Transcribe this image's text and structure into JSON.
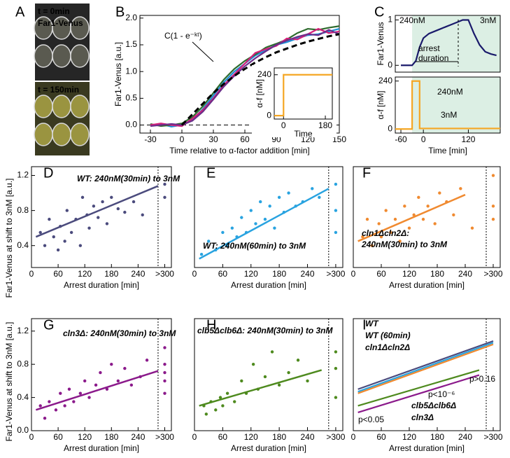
{
  "chart_data": [
    {
      "type": "image",
      "label": "A",
      "frames": [
        {
          "time": "t = 0min",
          "caption": "Far1-Venus"
        },
        {
          "time": "t = 150min"
        }
      ]
    },
    {
      "type": "line",
      "label": "B",
      "xlabel": "Time relative to α-factor addition [min]",
      "ylabel": "Far1-Venus [a.u.]",
      "xlim": [
        -40,
        150
      ],
      "ylim": [
        -0.15,
        2.05
      ],
      "xticks": [
        -30,
        0,
        30,
        60,
        90,
        120,
        150
      ],
      "yticks": [
        {
          "value": 0,
          "label": "0.0"
        },
        {
          "value": 0.5,
          "label": "0.5"
        },
        {
          "value": 1,
          "label": "1.0"
        },
        {
          "value": 1.5,
          "label": "1.5"
        },
        {
          "value": 2,
          "label": "2.0"
        }
      ],
      "hline": 0,
      "annotation": "C(1 - e⁻ᵏᵗ)",
      "x": [
        -30,
        -20,
        -10,
        0,
        10,
        20,
        30,
        40,
        50,
        60,
        70,
        80,
        90,
        100,
        110,
        120,
        130,
        140,
        150
      ],
      "series": [
        {
          "color": "#1f8fd6",
          "values": [
            0,
            0.02,
            -0.03,
            0,
            0.1,
            0.3,
            0.55,
            0.8,
            1.0,
            1.15,
            1.3,
            1.4,
            1.5,
            1.55,
            1.62,
            1.68,
            1.7,
            1.75,
            1.8
          ]
        },
        {
          "color": "#2e6b2e",
          "values": [
            0.02,
            -0.02,
            0,
            0.03,
            0.15,
            0.35,
            0.6,
            0.85,
            1.05,
            1.2,
            1.32,
            1.45,
            1.52,
            1.6,
            1.72,
            1.8,
            1.78,
            1.82,
            1.85
          ]
        },
        {
          "color": "#d6207a",
          "values": [
            0,
            0.03,
            0,
            -0.02,
            0.12,
            0.28,
            0.5,
            0.75,
            0.95,
            1.15,
            1.35,
            1.42,
            1.48,
            1.62,
            1.6,
            1.7,
            1.8,
            1.72,
            1.75
          ]
        },
        {
          "color": "#6b2e8a",
          "values": [
            -0.02,
            0,
            0.02,
            0,
            0.08,
            0.25,
            0.48,
            0.72,
            0.92,
            1.1,
            1.25,
            1.38,
            1.5,
            1.58,
            1.65,
            1.7,
            1.68,
            1.78,
            1.7
          ]
        },
        {
          "color": "#000000",
          "dash": true,
          "values": [
            null,
            null,
            null,
            0,
            0.2,
            0.4,
            0.6,
            0.77,
            0.92,
            1.05,
            1.17,
            1.27,
            1.36,
            1.43,
            1.5,
            1.56,
            1.61,
            1.66,
            1.7
          ]
        }
      ],
      "inset": {
        "xlabel": "Time",
        "ylabel": "α-f [nM]",
        "xlim": [
          -40,
          210
        ],
        "ylim": [
          -20,
          280
        ],
        "xticks": [
          0,
          180
        ],
        "yticks": [
          0,
          240
        ],
        "series": [
          {
            "color": "#f5a623",
            "x": [
              -40,
              0,
              0,
              210
            ],
            "values": [
              0,
              0,
              240,
              240
            ]
          }
        ]
      }
    },
    {
      "type": "line",
      "label": "C",
      "ylabel": "Far1-Venus",
      "xlim": [
        -75,
        205
      ],
      "ylim": [
        -0.15,
        1.1
      ],
      "yticks": [
        0,
        1
      ],
      "highlight": [
        -30,
        205
      ],
      "annotations": [
        "240nM",
        "3nM",
        "arrest",
        "duration"
      ],
      "x": [
        -60,
        -45,
        -30,
        -20,
        -10,
        0,
        15,
        30,
        45,
        60,
        75,
        90,
        105,
        120,
        135,
        150,
        165,
        180,
        195
      ],
      "series": [
        {
          "color": "#1a1a6b",
          "values": [
            0,
            0,
            0,
            0.1,
            0.4,
            0.6,
            0.7,
            0.75,
            0.8,
            0.85,
            0.9,
            0.95,
            1.0,
            1.0,
            0.7,
            0.45,
            0.3,
            0.25,
            0.22
          ]
        }
      ]
    },
    {
      "type": "line",
      "xlabel": "Time [min]",
      "ylabel": "α-f [nM]",
      "xlim": [
        -75,
        205
      ],
      "ylim": [
        -20,
        260
      ],
      "xticks": [
        -60,
        0,
        120
      ],
      "yticks": [
        0,
        240
      ],
      "highlight": [
        -30,
        205
      ],
      "annotations": [
        "240nM",
        "3nM"
      ],
      "x": [
        -75,
        -30,
        -30,
        -10,
        -10,
        205
      ],
      "series": [
        {
          "color": "#f5a623",
          "values": [
            0,
            0,
            240,
            240,
            3,
            3
          ]
        }
      ]
    },
    {
      "type": "scatter",
      "label": "D",
      "title": "WT: 240nM(30min) to 3nM",
      "color": "#4b4b7d",
      "xlabel": "Arrest duration [min]",
      "ylabel": "Far1-Venus at shift to 3nM [a.u.]",
      "xlim": [
        0,
        315
      ],
      "ylim": [
        0.15,
        1.3
      ],
      "xticks": [
        0,
        60,
        120,
        180,
        240,
        {
          "value": 300,
          "label": ">300"
        }
      ],
      "yticks": [
        0.4,
        0.8,
        1.2
      ],
      "vline": 285,
      "x": [
        20,
        30,
        40,
        50,
        60,
        65,
        75,
        80,
        90,
        100,
        110,
        115,
        125,
        130,
        140,
        150,
        160,
        170,
        180,
        195,
        210,
        230,
        250,
        300,
        300
      ],
      "values": [
        0.55,
        0.4,
        0.7,
        0.5,
        0.35,
        0.62,
        0.45,
        0.8,
        0.55,
        0.7,
        0.4,
        0.95,
        0.75,
        0.6,
        0.85,
        0.72,
        0.9,
        0.65,
        0.95,
        0.82,
        0.78,
        0.9,
        0.75,
        1.1,
        0.95
      ],
      "fit": {
        "x": [
          10,
          285
        ],
        "y": [
          0.5,
          1.08
        ]
      }
    },
    {
      "type": "scatter",
      "label": "E",
      "title": "WT: 240nM(60min) to 3nM",
      "color": "#29a3e0",
      "xlabel": "Arrest duration [min]",
      "xlim": [
        0,
        315
      ],
      "ylim": [
        0.15,
        1.3
      ],
      "xticks": [
        0,
        60,
        120,
        180,
        240,
        {
          "value": 300,
          "label": ">300"
        }
      ],
      "vline": 285,
      "x": [
        15,
        30,
        45,
        60,
        70,
        80,
        90,
        100,
        110,
        120,
        130,
        140,
        150,
        160,
        170,
        180,
        190,
        200,
        215,
        230,
        250,
        265,
        300,
        300,
        300
      ],
      "values": [
        0.3,
        0.45,
        0.35,
        0.55,
        0.4,
        0.6,
        0.5,
        0.72,
        0.55,
        0.8,
        0.65,
        0.9,
        0.7,
        0.85,
        0.6,
        0.95,
        0.78,
        1.0,
        0.85,
        0.9,
        1.05,
        0.95,
        0.8,
        1.1,
        0.55
      ],
      "fit": {
        "x": [
          10,
          285
        ],
        "y": [
          0.25,
          1.05
        ]
      }
    },
    {
      "type": "scatter",
      "label": "F",
      "title": [
        "cln1Δcln2Δ:",
        "240nM(30min) to 3nM"
      ],
      "color": "#f08a30",
      "xlabel": "Arrest duration [min]",
      "xlim": [
        0,
        315
      ],
      "ylim": [
        0.15,
        1.3
      ],
      "xticks": [
        0,
        60,
        120,
        180,
        240,
        {
          "value": 300,
          "label": ">300"
        }
      ],
      "vline": 285,
      "x": [
        20,
        30,
        40,
        55,
        60,
        70,
        80,
        90,
        100,
        110,
        120,
        130,
        140,
        150,
        160,
        175,
        185,
        200,
        215,
        230,
        255,
        300,
        300,
        300
      ],
      "values": [
        0.5,
        0.7,
        0.4,
        0.65,
        0.5,
        0.8,
        0.55,
        0.7,
        0.45,
        0.85,
        0.6,
        0.75,
        0.95,
        0.7,
        0.85,
        0.65,
        1.0,
        0.9,
        0.75,
        1.05,
        0.6,
        1.2,
        0.85,
        0.7
      ],
      "fit": {
        "x": [
          10,
          240
        ],
        "y": [
          0.45,
          0.98
        ]
      }
    },
    {
      "type": "scatter",
      "label": "G",
      "title": "cln3Δ: 240nM(30min) to 3nM",
      "color": "#8b1a8b",
      "xlabel": "Arrest duration [min]",
      "ylabel": "Far1-Venus at shift to 3nM [a.u.]",
      "xlim": [
        0,
        315
      ],
      "ylim": [
        0,
        1.35
      ],
      "xticks": [
        0,
        60,
        120,
        180,
        240,
        {
          "value": 300,
          "label": ">300"
        }
      ],
      "yticks": [
        {
          "value": 0,
          "label": "0.0"
        },
        0.4,
        0.8,
        1.2
      ],
      "vline": 285,
      "x": [
        20,
        30,
        40,
        55,
        65,
        75,
        85,
        95,
        110,
        120,
        130,
        145,
        155,
        170,
        180,
        195,
        210,
        225,
        245,
        260,
        300,
        300,
        300,
        300,
        300
      ],
      "values": [
        0.3,
        0.15,
        0.35,
        0.25,
        0.45,
        0.3,
        0.5,
        0.35,
        0.45,
        0.6,
        0.4,
        0.55,
        0.7,
        0.5,
        0.8,
        0.6,
        0.75,
        0.55,
        0.65,
        0.85,
        0.6,
        0.8,
        1.0,
        0.45,
        0.7
      ],
      "fit": {
        "x": [
          10,
          285
        ],
        "y": [
          0.25,
          0.72
        ]
      }
    },
    {
      "type": "scatter",
      "label": "H",
      "title": "clb5Δclb6Δ: 240nM(30min) to 3nM",
      "color": "#4e8a1e",
      "xlabel": "Arrest duration [min]",
      "xlim": [
        0,
        315
      ],
      "ylim": [
        0,
        1.35
      ],
      "xticks": [
        0,
        60,
        120,
        180,
        240,
        {
          "value": 300,
          "label": ">300"
        }
      ],
      "vline": 285,
      "x": [
        20,
        25,
        35,
        45,
        55,
        60,
        70,
        85,
        100,
        110,
        125,
        135,
        150,
        165,
        180,
        200,
        220,
        240,
        300,
        300,
        300
      ],
      "values": [
        0.3,
        0.2,
        0.35,
        0.25,
        0.4,
        0.3,
        0.45,
        0.35,
        0.6,
        0.45,
        0.8,
        0.5,
        0.65,
        0.95,
        0.55,
        0.7,
        0.85,
        0.6,
        0.75,
        0.95,
        0.4
      ],
      "fit": {
        "x": [
          10,
          270
        ],
        "y": [
          0.3,
          0.73
        ]
      }
    },
    {
      "type": "line",
      "label": "I",
      "xlabel": "Arrest duration [min]",
      "xlim": [
        0,
        315
      ],
      "ylim": [
        0,
        1.35
      ],
      "xticks": [
        0,
        60,
        120,
        180,
        240,
        {
          "value": 300,
          "label": ">300"
        }
      ],
      "vline": 285,
      "annotations": [
        "p>0.16",
        "p<10⁻⁶",
        "p<0.05"
      ],
      "series": [
        {
          "name": "WT",
          "color": "#4b4b7d",
          "x": [
            10,
            300
          ],
          "values": [
            0.5,
            1.08
          ]
        },
        {
          "name": "WT (60min)",
          "color": "#29a3e0",
          "x": [
            10,
            300
          ],
          "values": [
            0.47,
            1.06
          ]
        },
        {
          "name": "cln1Δcln2Δ",
          "color": "#f08a30",
          "x": [
            10,
            300
          ],
          "values": [
            0.45,
            1.04
          ]
        },
        {
          "name": "clb5Δclb6Δ",
          "color": "#4e8a1e",
          "x": [
            10,
            270
          ],
          "values": [
            0.3,
            0.73
          ]
        },
        {
          "name": "cln3Δ",
          "color": "#8b1a8b",
          "x": [
            10,
            270
          ],
          "values": [
            0.22,
            0.67
          ]
        }
      ]
    }
  ]
}
